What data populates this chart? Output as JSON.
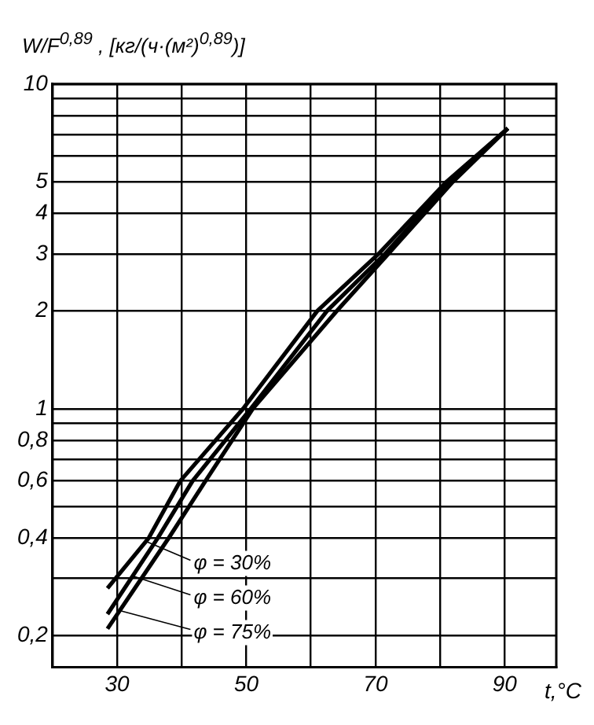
{
  "chart_data": {
    "type": "line",
    "ylabel": "W/F$^{0,89}$ , [кг/(ч·(м²)$^{0,89}$)]",
    "xlabel": "t,°C",
    "log": "y",
    "grid": true,
    "legend": "bottom left",
    "marker": "none",
    "line_style": "solid",
    "xlim": [
      20,
      98
    ],
    "xticks": [
      30,
      {
        "value": 40,
        "label": null
      },
      50,
      {
        "value": 60,
        "label": null
      },
      70,
      {
        "value": 80,
        "label": null
      },
      90
    ],
    "ylim": [
      0.16,
      10
    ],
    "yticks": [
      {
        "value": 0.2,
        "label": "0,2"
      },
      {
        "value": 0.3,
        "label": null
      },
      {
        "value": 0.4,
        "label": "0,4"
      },
      {
        "value": 0.5,
        "label": null
      },
      {
        "value": 0.6,
        "label": "0,6"
      },
      {
        "value": 0.7,
        "label": null
      },
      {
        "value": 0.8,
        "label": "0,8"
      },
      {
        "value": 0.9,
        "label": null
      },
      1,
      2,
      3,
      4,
      5,
      {
        "value": 6,
        "label": null
      },
      {
        "value": 7,
        "label": null
      },
      {
        "value": 8,
        "label": null
      },
      {
        "value": 9,
        "label": null
      },
      10
    ],
    "series": [
      {
        "name": "φ = 30%",
        "color": "#000000",
        "x": [
          28.5,
          34.9,
          39.8,
          49.5,
          61,
          70.5,
          81,
          90.5
        ],
        "values": [
          0.28,
          0.4,
          0.6,
          1,
          2,
          3,
          5,
          7.3
        ]
      },
      {
        "name": "φ = 60%",
        "color": "#000000",
        "x": [
          28.5,
          36.3,
          41.7,
          50.7,
          62.5,
          71.5,
          81.5,
          90.5
        ],
        "values": [
          0.233,
          0.4,
          0.6,
          1,
          2,
          3,
          5,
          7.3
        ]
      },
      {
        "name": "φ = 75%",
        "color": "#000000",
        "x": [
          28.5,
          38,
          43.7,
          51,
          64,
          72,
          82,
          90.5
        ],
        "values": [
          0.21,
          0.4,
          0.6,
          1,
          2,
          3,
          5,
          7.3
        ]
      }
    ]
  }
}
